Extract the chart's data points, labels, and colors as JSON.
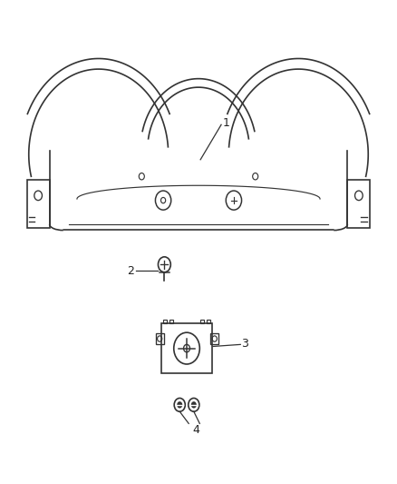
{
  "background_color": "#ffffff",
  "line_color": "#333333",
  "label_color": "#222222",
  "fig_width": 4.38,
  "fig_height": 5.33,
  "dpi": 100
}
